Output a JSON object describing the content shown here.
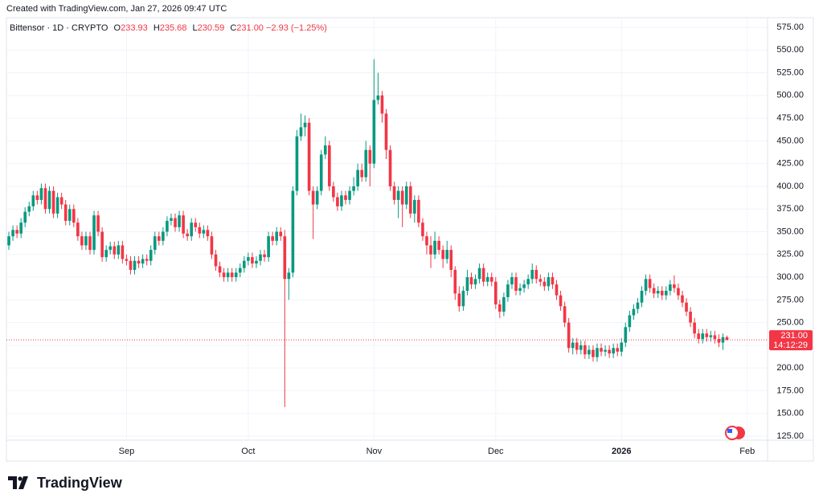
{
  "header": "Created with TradingView.com, Jan 27, 2026 09:47 UTC",
  "logo": "TradingView",
  "chart_data": {
    "type": "candlestick",
    "symbol": "Bittensor · 1D · CRYPTO",
    "ohlc_legend": [
      {
        "label": "O",
        "value": "233.93"
      },
      {
        "label": "H",
        "value": "235.68"
      },
      {
        "label": "L",
        "value": "230.59"
      },
      {
        "label": "C",
        "value": "231.00"
      }
    ],
    "change": "−2.93 (−1.25%)",
    "up_color": "#089981",
    "down_color": "#f23645",
    "grid": true,
    "xlim": [
      -0.6,
      187
    ],
    "xticks": [
      {
        "value": 29,
        "label": "Sep"
      },
      {
        "value": 59,
        "label": "Oct"
      },
      {
        "value": 90,
        "label": "Nov"
      },
      {
        "value": 120,
        "label": "Dec"
      },
      {
        "value": 151,
        "label": "2026"
      },
      {
        "value": 182,
        "label": "Feb"
      }
    ],
    "ylim": [
      120.6,
      585.6
    ],
    "yticks": [
      {
        "value": 125,
        "label": "125.00"
      },
      {
        "value": 150,
        "label": "150.00"
      },
      {
        "value": 175,
        "label": "175.00"
      },
      {
        "value": 200,
        "label": "200.00"
      },
      {
        "value": 225,
        "label": "225.00"
      },
      {
        "value": 250,
        "label": "250.00"
      },
      {
        "value": 275,
        "label": "275.00"
      },
      {
        "value": 300,
        "label": "300.00"
      },
      {
        "value": 325,
        "label": "325.00"
      },
      {
        "value": 350,
        "label": "350.00"
      },
      {
        "value": 375,
        "label": "375.00"
      },
      {
        "value": 400,
        "label": "400.00"
      },
      {
        "value": 425,
        "label": "425.00"
      },
      {
        "value": 450,
        "label": "450.00"
      },
      {
        "value": 475,
        "label": "475.00"
      },
      {
        "value": 500,
        "label": "500.00"
      },
      {
        "value": 525,
        "label": "525.00"
      },
      {
        "value": 550,
        "label": "550.00"
      },
      {
        "value": 575,
        "label": "575.00"
      }
    ],
    "last_price": {
      "value": 231,
      "label": "231.00"
    },
    "countdown": "14:12:29",
    "open": [
      335,
      345,
      352,
      348,
      360,
      372,
      378,
      390,
      385,
      398,
      375,
      395,
      370,
      388,
      380,
      362,
      375,
      360,
      345,
      335,
      345,
      330,
      368,
      350,
      322,
      330,
      334,
      325,
      335,
      320,
      318,
      308,
      318,
      315,
      320,
      318,
      330,
      345,
      340,
      350,
      362,
      365,
      355,
      368,
      348,
      345,
      360,
      355,
      348,
      352,
      345,
      325,
      312,
      305,
      300,
      305,
      300,
      305,
      310,
      318,
      322,
      315,
      318,
      325,
      322,
      345,
      340,
      350,
      345,
      298,
      305,
      395,
      455,
      465,
      470,
      395,
      380,
      395,
      435,
      445,
      400,
      388,
      378,
      390,
      385,
      395,
      400,
      418,
      410,
      440,
      425,
      495,
      500,
      480,
      440,
      400,
      385,
      395,
      380,
      400,
      370,
      385,
      360,
      345,
      335,
      325,
      340,
      330,
      320,
      330,
      308,
      282,
      268,
      285,
      300,
      292,
      298,
      310,
      295,
      300,
      295,
      270,
      262,
      278,
      292,
      300,
      285,
      288,
      292,
      298,
      308,
      298,
      295,
      290,
      300,
      292,
      280,
      268,
      250,
      222,
      228,
      220,
      225,
      215,
      220,
      212,
      222,
      218,
      220,
      216,
      222,
      218,
      228,
      245,
      258,
      265,
      272,
      285,
      298,
      288,
      282,
      285,
      280,
      285,
      292,
      288,
      280,
      272,
      262,
      250,
      238,
      232,
      238,
      234,
      236,
      232,
      228,
      233.93
    ],
    "high": [
      350,
      357,
      357,
      365,
      377,
      383,
      395,
      395,
      403,
      403,
      400,
      400,
      393,
      393,
      385,
      380,
      380,
      365,
      350,
      350,
      350,
      373,
      373,
      355,
      335,
      339,
      339,
      340,
      340,
      325,
      323,
      323,
      323,
      325,
      325,
      335,
      350,
      350,
      355,
      367,
      370,
      370,
      373,
      373,
      353,
      365,
      365,
      360,
      357,
      357,
      350,
      330,
      317,
      310,
      310,
      310,
      310,
      315,
      323,
      327,
      327,
      323,
      330,
      330,
      350,
      350,
      355,
      355,
      352,
      310,
      400,
      462,
      480,
      478,
      475,
      400,
      400,
      440,
      455,
      450,
      405,
      393,
      395,
      395,
      400,
      410,
      425,
      425,
      450,
      445,
      540,
      525,
      505,
      485,
      445,
      405,
      400,
      400,
      405,
      405,
      390,
      390,
      365,
      350,
      345,
      350,
      345,
      335,
      340,
      335,
      312,
      290,
      290,
      308,
      305,
      303,
      315,
      315,
      305,
      305,
      300,
      275,
      283,
      297,
      305,
      305,
      293,
      297,
      303,
      315,
      313,
      303,
      300,
      305,
      305,
      297,
      285,
      273,
      255,
      233,
      233,
      230,
      230,
      225,
      225,
      227,
      227,
      225,
      225,
      227,
      227,
      233,
      250,
      263,
      270,
      277,
      290,
      303,
      303,
      293,
      290,
      290,
      290,
      297,
      302,
      293,
      285,
      277,
      267,
      255,
      243,
      243,
      243,
      241,
      241,
      237,
      238,
      235.68
    ],
    "low": [
      330,
      340,
      343,
      343,
      355,
      367,
      373,
      380,
      380,
      370,
      370,
      365,
      365,
      375,
      357,
      357,
      355,
      340,
      330,
      330,
      325,
      325,
      345,
      317,
      317,
      325,
      320,
      320,
      315,
      313,
      303,
      303,
      310,
      310,
      313,
      313,
      325,
      335,
      335,
      345,
      357,
      350,
      350,
      343,
      340,
      340,
      350,
      343,
      343,
      340,
      320,
      307,
      300,
      295,
      295,
      295,
      295,
      300,
      305,
      313,
      310,
      310,
      313,
      317,
      317,
      335,
      335,
      340,
      157,
      275,
      300,
      390,
      450,
      455,
      390,
      342,
      375,
      390,
      430,
      395,
      383,
      373,
      373,
      380,
      380,
      390,
      395,
      405,
      405,
      400,
      420,
      490,
      470,
      430,
      395,
      380,
      365,
      355,
      375,
      365,
      360,
      355,
      340,
      325,
      310,
      320,
      325,
      310,
      315,
      300,
      275,
      262,
      263,
      280,
      287,
      287,
      293,
      290,
      290,
      290,
      265,
      255,
      257,
      273,
      287,
      280,
      280,
      283,
      287,
      293,
      293,
      290,
      285,
      285,
      287,
      275,
      263,
      245,
      217,
      215,
      215,
      215,
      210,
      210,
      207,
      207,
      213,
      213,
      211,
      211,
      213,
      213,
      223,
      240,
      253,
      260,
      267,
      280,
      283,
      277,
      277,
      275,
      275,
      280,
      283,
      275,
      267,
      257,
      245,
      233,
      227,
      227,
      229,
      229,
      227,
      223,
      220,
      230.59
    ],
    "close": [
      345,
      352,
      348,
      360,
      372,
      378,
      390,
      385,
      398,
      375,
      395,
      370,
      388,
      380,
      362,
      375,
      360,
      345,
      335,
      345,
      330,
      368,
      350,
      322,
      330,
      334,
      325,
      335,
      320,
      318,
      308,
      318,
      315,
      320,
      318,
      330,
      345,
      340,
      350,
      362,
      365,
      355,
      368,
      348,
      345,
      360,
      355,
      348,
      352,
      345,
      325,
      312,
      305,
      300,
      305,
      300,
      305,
      310,
      318,
      322,
      315,
      318,
      325,
      322,
      345,
      340,
      350,
      345,
      298,
      305,
      395,
      455,
      465,
      470,
      395,
      380,
      395,
      435,
      445,
      400,
      388,
      378,
      390,
      385,
      395,
      400,
      418,
      410,
      440,
      425,
      495,
      500,
      480,
      440,
      400,
      385,
      395,
      380,
      400,
      370,
      385,
      360,
      345,
      335,
      325,
      340,
      330,
      320,
      330,
      308,
      282,
      268,
      285,
      300,
      292,
      298,
      310,
      295,
      300,
      295,
      270,
      262,
      278,
      292,
      300,
      285,
      288,
      292,
      298,
      308,
      298,
      295,
      290,
      300,
      292,
      280,
      268,
      250,
      222,
      228,
      220,
      225,
      215,
      220,
      212,
      222,
      218,
      220,
      216,
      222,
      218,
      228,
      245,
      258,
      265,
      272,
      285,
      298,
      288,
      282,
      285,
      280,
      285,
      292,
      288,
      280,
      272,
      262,
      250,
      238,
      232,
      238,
      234,
      236,
      232,
      228,
      233.93,
      231
    ]
  }
}
